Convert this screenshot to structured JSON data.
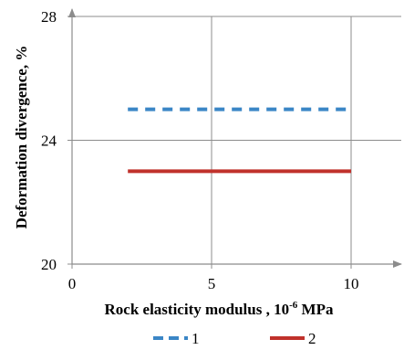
{
  "chart_data": {
    "type": "line",
    "title": "",
    "xlabel": "Rock elasticity modulus , 10",
    "xlabel_superscript": "-6",
    "xlabel_unit": " MPa",
    "ylabel": "Deformation divergence, %",
    "xlim": [
      0,
      12
    ],
    "ylim": [
      20,
      28
    ],
    "x_ticks": [
      0,
      5,
      10
    ],
    "y_ticks": [
      20,
      24,
      28
    ],
    "x_tick_labels": [
      "0",
      "5",
      "10"
    ],
    "y_tick_labels": [
      "20",
      "24",
      "28"
    ],
    "grid": true,
    "legend_position": "bottom",
    "series": [
      {
        "name": "1",
        "style": "dashed",
        "color": "#3b86c6",
        "x": [
          2,
          10
        ],
        "y": [
          25,
          25
        ]
      },
      {
        "name": "2",
        "style": "solid",
        "color": "#c0312b",
        "x": [
          2,
          10
        ],
        "y": [
          23,
          23
        ]
      }
    ]
  }
}
